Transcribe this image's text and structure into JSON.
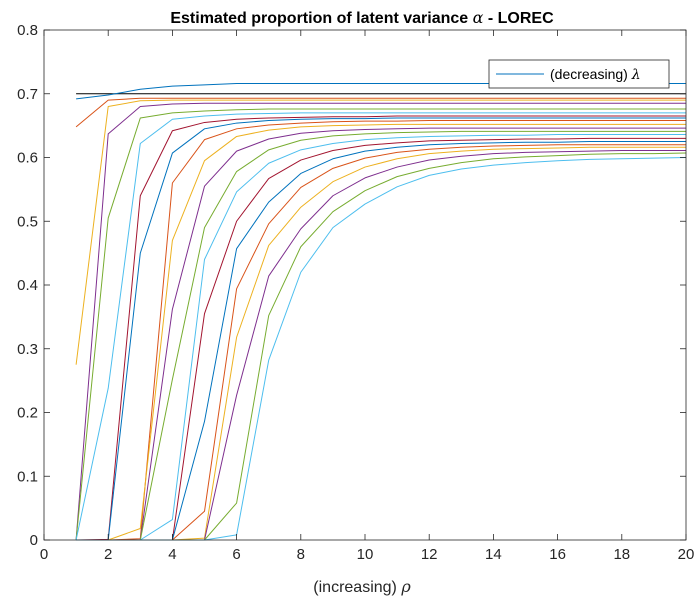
{
  "chart_data": {
    "type": "line",
    "title_text": "Estimated proportion of latent variance ",
    "title_symbol": "α",
    "title_suffix": " - LOREC",
    "xlabel_text": "(increasing) ",
    "xlabel_symbol": "ρ",
    "ylabel": "",
    "xlim": [
      0,
      20
    ],
    "ylim": [
      0,
      0.8
    ],
    "xticks": [
      0,
      2,
      4,
      6,
      8,
      10,
      12,
      14,
      16,
      18,
      20
    ],
    "yticks": [
      0,
      0.1,
      0.2,
      0.3,
      0.4,
      0.5,
      0.6,
      0.7,
      0.8
    ],
    "ytick_labels": [
      "0",
      "0.1",
      "0.2",
      "0.3",
      "0.4",
      "0.5",
      "0.6",
      "0.7",
      "0.8"
    ],
    "grid": false,
    "legend": {
      "position": "top-right",
      "entry_text": "(decreasing) ",
      "entry_symbol": "λ",
      "entry_color": "#0072BD"
    },
    "x": [
      1,
      2,
      3,
      4,
      5,
      6,
      7,
      8,
      9,
      10,
      11,
      12,
      13,
      14,
      15,
      16,
      17,
      18,
      19,
      20
    ],
    "series": [
      {
        "color": "#000000",
        "values": [
          0.7,
          0.7,
          0.7,
          0.7,
          0.7,
          0.7,
          0.7,
          0.7,
          0.7,
          0.7,
          0.7,
          0.7,
          0.7,
          0.7,
          0.7,
          0.7,
          0.7,
          0.7,
          0.7,
          0.7
        ]
      },
      {
        "color": "#0072BD",
        "values": [
          0.692,
          0.698,
          0.707,
          0.712,
          0.714,
          0.716,
          0.716,
          0.716,
          0.716,
          0.716,
          0.716,
          0.716,
          0.716,
          0.716,
          0.716,
          0.716,
          0.716,
          0.716,
          0.716,
          0.716
        ]
      },
      {
        "color": "#D95319",
        "values": [
          0.648,
          0.69,
          0.693,
          0.693,
          0.693,
          0.693,
          0.693,
          0.693,
          0.693,
          0.693,
          0.693,
          0.693,
          0.693,
          0.693,
          0.693,
          0.693,
          0.693,
          0.693,
          0.693,
          0.693
        ]
      },
      {
        "color": "#EDB120",
        "values": [
          0.275,
          0.68,
          0.689,
          0.69,
          0.69,
          0.69,
          0.69,
          0.69,
          0.69,
          0.69,
          0.69,
          0.69,
          0.69,
          0.69,
          0.69,
          0.69,
          0.69,
          0.69,
          0.69,
          0.69
        ]
      },
      {
        "color": "#7E2F8E",
        "values": [
          0,
          0.637,
          0.68,
          0.684,
          0.685,
          0.685,
          0.685,
          0.685,
          0.685,
          0.685,
          0.685,
          0.685,
          0.685,
          0.685,
          0.685,
          0.685,
          0.685,
          0.685,
          0.685,
          0.685
        ]
      },
      {
        "color": "#77AC30",
        "values": [
          0,
          0.505,
          0.662,
          0.67,
          0.673,
          0.675,
          0.676,
          0.676,
          0.676,
          0.676,
          0.676,
          0.676,
          0.676,
          0.676,
          0.676,
          0.676,
          0.676,
          0.676,
          0.676,
          0.676
        ]
      },
      {
        "color": "#4DBEEE",
        "values": [
          0,
          0.238,
          0.622,
          0.66,
          0.665,
          0.668,
          0.669,
          0.67,
          0.67,
          0.67,
          0.67,
          0.67,
          0.67,
          0.67,
          0.67,
          0.67,
          0.67,
          0.67,
          0.67,
          0.67
        ]
      },
      {
        "color": "#A2142F",
        "values": [
          0,
          0.001,
          0.54,
          0.642,
          0.655,
          0.66,
          0.662,
          0.663,
          0.664,
          0.664,
          0.665,
          0.665,
          0.665,
          0.665,
          0.665,
          0.665,
          0.665,
          0.665,
          0.665,
          0.665
        ]
      },
      {
        "color": "#0072BD",
        "values": [
          0,
          0,
          0.45,
          0.607,
          0.645,
          0.654,
          0.658,
          0.66,
          0.661,
          0.661,
          0.662,
          0.662,
          0.662,
          0.662,
          0.662,
          0.662,
          0.662,
          0.662,
          0.662,
          0.662
        ]
      },
      {
        "color": "#D95319",
        "values": [
          0,
          0,
          0.002,
          0.56,
          0.628,
          0.645,
          0.651,
          0.654,
          0.656,
          0.657,
          0.657,
          0.658,
          0.658,
          0.658,
          0.658,
          0.658,
          0.658,
          0.658,
          0.658,
          0.658
        ]
      },
      {
        "color": "#EDB120",
        "values": [
          0,
          0,
          0.018,
          0.47,
          0.595,
          0.633,
          0.643,
          0.648,
          0.65,
          0.651,
          0.652,
          0.652,
          0.652,
          0.652,
          0.652,
          0.652,
          0.652,
          0.652,
          0.652,
          0.652
        ]
      },
      {
        "color": "#7E2F8E",
        "values": [
          0,
          0,
          0,
          0.362,
          0.555,
          0.61,
          0.629,
          0.638,
          0.642,
          0.644,
          0.645,
          0.646,
          0.646,
          0.646,
          0.646,
          0.646,
          0.646,
          0.646,
          0.646,
          0.646
        ]
      },
      {
        "color": "#77AC30",
        "values": [
          0,
          0,
          0,
          0.252,
          0.49,
          0.578,
          0.612,
          0.627,
          0.634,
          0.637,
          0.639,
          0.64,
          0.641,
          0.641,
          0.641,
          0.641,
          0.641,
          0.641,
          0.641,
          0.641
        ]
      },
      {
        "color": "#4DBEEE",
        "values": [
          0,
          0,
          0,
          0.032,
          0.44,
          0.546,
          0.591,
          0.612,
          0.622,
          0.628,
          0.631,
          0.633,
          0.634,
          0.635,
          0.635,
          0.636,
          0.636,
          0.636,
          0.636,
          0.636
        ]
      },
      {
        "color": "#A2142F",
        "values": [
          0,
          0,
          0,
          0,
          0.355,
          0.5,
          0.567,
          0.596,
          0.611,
          0.619,
          0.623,
          0.626,
          0.627,
          0.628,
          0.629,
          0.629,
          0.63,
          0.63,
          0.63,
          0.63
        ]
      },
      {
        "color": "#0072BD",
        "values": [
          0,
          0,
          0,
          0,
          0.186,
          0.457,
          0.53,
          0.575,
          0.598,
          0.61,
          0.616,
          0.62,
          0.622,
          0.623,
          0.624,
          0.624,
          0.625,
          0.625,
          0.625,
          0.625
        ]
      },
      {
        "color": "#D95319",
        "values": [
          0,
          0,
          0,
          0,
          0.045,
          0.394,
          0.496,
          0.553,
          0.583,
          0.599,
          0.608,
          0.613,
          0.616,
          0.618,
          0.619,
          0.62,
          0.62,
          0.62,
          0.62,
          0.62
        ]
      },
      {
        "color": "#EDB120",
        "values": [
          0,
          0,
          0,
          0,
          0.003,
          0.318,
          0.462,
          0.522,
          0.562,
          0.585,
          0.598,
          0.606,
          0.61,
          0.613,
          0.614,
          0.615,
          0.616,
          0.616,
          0.616,
          0.616
        ]
      },
      {
        "color": "#7E2F8E",
        "values": [
          0,
          0,
          0,
          0,
          0,
          0.227,
          0.414,
          0.488,
          0.54,
          0.568,
          0.585,
          0.596,
          0.602,
          0.606,
          0.608,
          0.609,
          0.61,
          0.611,
          0.611,
          0.611
        ]
      },
      {
        "color": "#77AC30",
        "values": [
          0,
          0,
          0,
          0,
          0,
          0.058,
          0.352,
          0.46,
          0.515,
          0.548,
          0.57,
          0.583,
          0.592,
          0.598,
          0.601,
          0.603,
          0.605,
          0.606,
          0.606,
          0.607
        ]
      },
      {
        "color": "#4DBEEE",
        "values": [
          0,
          0,
          0,
          0,
          0,
          0.008,
          0.282,
          0.42,
          0.49,
          0.527,
          0.554,
          0.572,
          0.582,
          0.588,
          0.592,
          0.595,
          0.597,
          0.598,
          0.599,
          0.6
        ]
      }
    ]
  }
}
